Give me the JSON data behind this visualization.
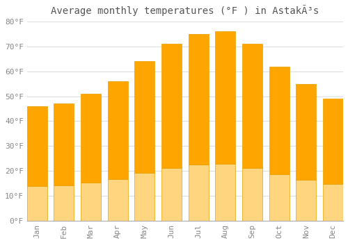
{
  "title": "Average monthly temperatures (°F ) in AstakÃ³s",
  "months": [
    "Jan",
    "Feb",
    "Mar",
    "Apr",
    "May",
    "Jun",
    "Jul",
    "Aug",
    "Sep",
    "Oct",
    "Nov",
    "Dec"
  ],
  "values": [
    46,
    47,
    51,
    56,
    64,
    71,
    75,
    76,
    71,
    62,
    55,
    49
  ],
  "bar_color": "#FFA500",
  "bar_color_light": "#FFD580",
  "bar_edge_color": "#E8A000",
  "background_color": "#FFFFFF",
  "plot_bg_color": "#FFFFFF",
  "grid_color": "#DDDDDD",
  "text_color": "#888888",
  "title_color": "#555555",
  "ylim": [
    0,
    80
  ],
  "yticks": [
    0,
    10,
    20,
    30,
    40,
    50,
    60,
    70,
    80
  ],
  "figsize": [
    5.0,
    3.5
  ],
  "dpi": 100,
  "bar_width": 0.75,
  "tick_fontsize": 8,
  "title_fontsize": 10
}
